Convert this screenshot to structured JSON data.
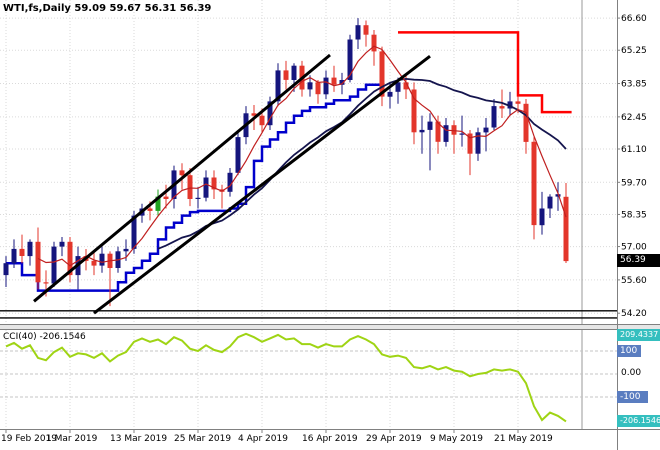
{
  "header": {
    "symbol_period": "WTI,fs,Daily",
    "ohlc": "59.09 59.67 56.31 56.39"
  },
  "indicator": {
    "label": "CCI(40) -206.1546",
    "axis": {
      "max_label": "209.4337",
      "level_100": "100",
      "level_0": "0.00",
      "level_minus_100": "-100",
      "current_label": "-206.1546"
    }
  },
  "price_axis": {
    "labels": [
      "66.60",
      "65.25",
      "63.85",
      "62.45",
      "61.10",
      "59.70",
      "58.35",
      "57.00",
      "55.60",
      "54.20"
    ],
    "values": [
      66.6,
      65.25,
      63.85,
      62.45,
      61.1,
      59.7,
      58.35,
      57.0,
      55.6,
      54.2
    ],
    "current": {
      "label": "56.39",
      "value": 56.39
    }
  },
  "time_axis": {
    "labels": [
      "19 Feb 2019",
      "1 Mar 2019",
      "13 Mar 2019",
      "25 Mar 2019",
      "4 Apr 2019",
      "16 Apr 2019",
      "29 Apr 2019",
      "9 May 2019",
      "21 May 2019"
    ],
    "indices": [
      0,
      8,
      16,
      24,
      32,
      40,
      48,
      56,
      64
    ],
    "extra_gridline_index": 72
  },
  "colors": {
    "background": "#ffffff",
    "grid": "#dadada",
    "candle_up": "#15157d",
    "candle_down": "#e3362b",
    "candle_green": "#1fa31f",
    "ma_fast": "#c02020",
    "ma_slow": "#15154e",
    "hilo_line": "#0000cc",
    "resistance_line": "#ff0000",
    "trendline": "#000000",
    "support_line": "#000000",
    "cci_line": "#9fd414",
    "level_box": "#5a7dc0",
    "value_box": "#35bfbf",
    "price_box": "#000000",
    "axis_border": "#808080",
    "separator_line": "#999999"
  },
  "chart_data": {
    "type": "candlestick",
    "title": "WTI,fs,Daily",
    "ylim": [
      53.9,
      67.36
    ],
    "candles": {
      "ohlc": [
        [
          55.8,
          56.6,
          55.3,
          56.3
        ],
        [
          56.3,
          57.3,
          56.1,
          56.9
        ],
        [
          56.9,
          57.5,
          56.3,
          56.6
        ],
        [
          56.6,
          57.3,
          56.2,
          57.2
        ],
        [
          57.2,
          57.8,
          55.2,
          55.5
        ],
        [
          55.5,
          56.0,
          54.9,
          55.45
        ],
        [
          55.45,
          57.2,
          55.3,
          57.0
        ],
        [
          57.0,
          57.4,
          56.6,
          57.2
        ],
        [
          57.2,
          57.4,
          55.5,
          55.8
        ],
        [
          55.8,
          57.0,
          55.2,
          56.6
        ],
        [
          56.6,
          56.9,
          56.0,
          56.4
        ],
        [
          56.4,
          56.8,
          55.8,
          56.2
        ],
        [
          56.2,
          57.0,
          55.9,
          56.7
        ],
        [
          56.7,
          56.8,
          54.5,
          56.1
        ],
        [
          56.1,
          57.0,
          55.9,
          56.8
        ],
        [
          56.8,
          57.3,
          56.4,
          56.9
        ],
        [
          56.9,
          58.5,
          56.7,
          58.3
        ],
        [
          58.3,
          58.8,
          58.0,
          58.6
        ],
        [
          58.6,
          58.9,
          58.1,
          58.5
        ],
        [
          58.5,
          59.4,
          58.3,
          59.1
        ],
        [
          59.1,
          59.6,
          58.6,
          59.0
        ],
        [
          59.0,
          60.4,
          58.6,
          60.2
        ],
        [
          60.2,
          60.5,
          59.4,
          60.0
        ],
        [
          60.0,
          60.3,
          58.7,
          59.0
        ],
        [
          59.0,
          59.5,
          58.6,
          59.05
        ],
        [
          59.05,
          60.2,
          58.9,
          59.9
        ],
        [
          59.9,
          60.2,
          59.0,
          59.4
        ],
        [
          59.4,
          59.6,
          58.6,
          59.3
        ],
        [
          59.3,
          60.3,
          59.1,
          60.1
        ],
        [
          60.1,
          61.8,
          60.0,
          61.6
        ],
        [
          61.6,
          62.9,
          61.3,
          62.6
        ],
        [
          62.6,
          62.95,
          61.9,
          62.5
        ],
        [
          62.5,
          62.8,
          61.8,
          62.1
        ],
        [
          62.1,
          63.3,
          61.9,
          63.1
        ],
        [
          63.1,
          64.7,
          62.9,
          64.4
        ],
        [
          64.4,
          64.8,
          63.6,
          64.0
        ],
        [
          64.0,
          64.7,
          63.5,
          64.6
        ],
        [
          64.6,
          64.8,
          63.3,
          63.6
        ],
        [
          63.6,
          64.2,
          63.3,
          63.9
        ],
        [
          63.9,
          64.0,
          63.0,
          63.4
        ],
        [
          63.4,
          64.4,
          63.2,
          64.1
        ],
        [
          64.1,
          64.6,
          63.5,
          63.8
        ],
        [
          63.8,
          64.3,
          63.4,
          64.0
        ],
        [
          64.0,
          65.9,
          63.9,
          65.7
        ],
        [
          65.7,
          66.6,
          65.3,
          66.3
        ],
        [
          66.3,
          66.5,
          65.4,
          65.9
        ],
        [
          65.9,
          66.1,
          64.6,
          65.2
        ],
        [
          65.2,
          65.4,
          62.9,
          63.3
        ],
        [
          63.3,
          63.9,
          62.8,
          63.5
        ],
        [
          63.5,
          64.1,
          63.0,
          63.9
        ],
        [
          63.9,
          64.2,
          63.2,
          63.6
        ],
        [
          63.6,
          63.9,
          61.3,
          61.8
        ],
        [
          61.8,
          62.5,
          60.9,
          61.9
        ],
        [
          61.9,
          62.6,
          60.2,
          62.25
        ],
        [
          62.25,
          62.5,
          60.9,
          61.4
        ],
        [
          61.4,
          62.4,
          61.2,
          62.1
        ],
        [
          62.1,
          62.3,
          60.9,
          61.7
        ],
        [
          61.7,
          62.5,
          61.2,
          61.75
        ],
        [
          61.75,
          61.9,
          60.0,
          60.9
        ],
        [
          60.9,
          62.0,
          60.6,
          61.8
        ],
        [
          61.8,
          62.4,
          61.0,
          62.0
        ],
        [
          62.0,
          63.2,
          61.9,
          62.9
        ],
        [
          62.9,
          63.6,
          62.4,
          62.8
        ],
        [
          62.8,
          63.5,
          62.5,
          63.1
        ],
        [
          63.1,
          63.5,
          62.6,
          63.0
        ],
        [
          63.0,
          63.2,
          60.9,
          61.4
        ],
        [
          61.4,
          61.6,
          57.3,
          57.9
        ],
        [
          57.9,
          59.3,
          57.5,
          58.6
        ],
        [
          58.6,
          59.2,
          58.2,
          59.1
        ],
        [
          59.1,
          59.7,
          58.5,
          59.2
        ],
        [
          59.09,
          59.67,
          56.31,
          56.39
        ]
      ],
      "green_indices": [
        19
      ]
    },
    "overlays": {
      "ma_fast_period": 5,
      "ma_slow_period": 20,
      "hilo_support_step": {
        "points": [
          [
            0,
            56.3
          ],
          [
            2,
            55.8
          ],
          [
            4,
            55.15
          ],
          [
            14,
            55.5
          ],
          [
            15,
            55.9
          ],
          [
            16,
            56.1
          ],
          [
            17,
            56.4
          ],
          [
            18,
            56.7
          ],
          [
            19,
            57.3
          ],
          [
            20,
            57.8
          ],
          [
            21,
            58.0
          ],
          [
            22,
            58.3
          ],
          [
            23,
            58.45
          ],
          [
            24,
            58.5
          ],
          [
            28,
            58.6
          ],
          [
            29,
            58.8
          ],
          [
            30,
            59.5
          ],
          [
            31,
            60.6
          ],
          [
            32,
            61.2
          ],
          [
            33,
            61.5
          ],
          [
            34,
            61.8
          ],
          [
            35,
            62.2
          ],
          [
            36,
            62.5
          ],
          [
            37,
            62.7
          ],
          [
            38,
            62.85
          ],
          [
            40,
            63.0
          ],
          [
            41,
            63.15
          ],
          [
            43,
            63.3
          ],
          [
            44,
            63.6
          ],
          [
            45,
            63.8
          ]
        ],
        "end_index": 47
      },
      "resistance_step": {
        "points": [
          [
            49,
            66.0
          ],
          [
            64,
            63.35
          ],
          [
            67,
            62.65
          ]
        ],
        "end_index": 70.7
      },
      "trendlines": [
        {
          "from": [
            3.5,
            54.7
          ],
          "to": [
            40.5,
            65.05
          ]
        },
        {
          "from": [
            11,
            54.2
          ],
          "to": [
            53,
            65.0
          ]
        }
      ],
      "support_levels": [
        54.3,
        54.0
      ]
    },
    "indicator_pane": {
      "name": "CCI",
      "period": 40,
      "current": -206.1546,
      "levels": [
        100,
        0,
        -100
      ],
      "values": [
        120,
        135,
        110,
        125,
        70,
        60,
        95,
        115,
        75,
        90,
        85,
        70,
        90,
        55,
        80,
        95,
        140,
        155,
        140,
        150,
        130,
        160,
        145,
        110,
        100,
        125,
        105,
        95,
        120,
        160,
        175,
        160,
        140,
        155,
        170,
        150,
        155,
        130,
        130,
        115,
        130,
        120,
        120,
        150,
        165,
        150,
        130,
        85,
        75,
        80,
        70,
        30,
        25,
        35,
        20,
        30,
        15,
        10,
        -10,
        0,
        5,
        20,
        15,
        20,
        10,
        -40,
        -140,
        -200,
        -168,
        -182,
        -206.15
      ]
    }
  }
}
